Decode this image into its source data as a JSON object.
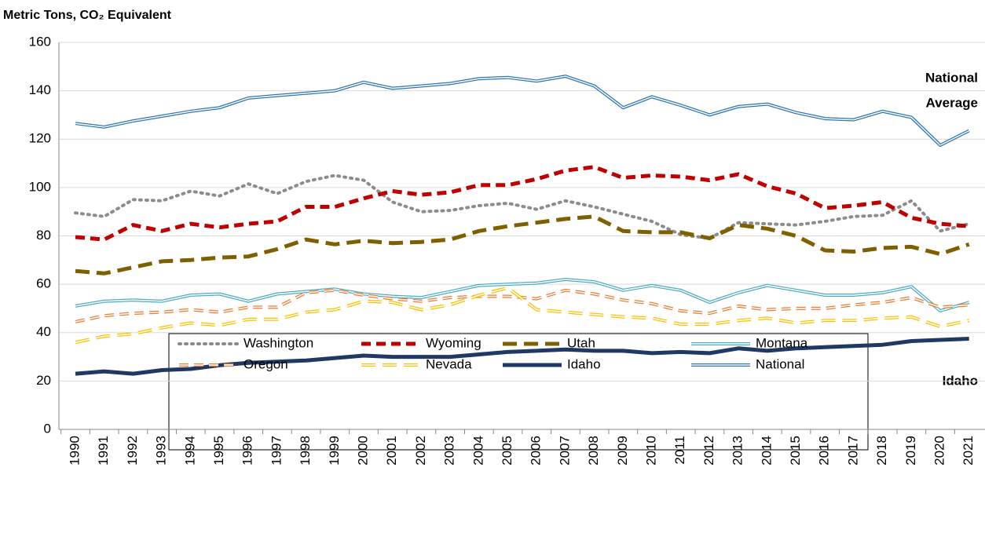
{
  "chart_data": {
    "type": "line",
    "y_axis_title": "Metric Tons, CO₂ Equivalent",
    "annotations": [
      "National",
      "Average",
      "Idaho"
    ],
    "categories": [
      "1990",
      "1991",
      "1992",
      "1993",
      "1994",
      "1995",
      "1996",
      "1997",
      "1998",
      "1999",
      "2000",
      "2001",
      "2002",
      "2003",
      "2004",
      "2005",
      "2006",
      "2007",
      "2008",
      "2009",
      "2010",
      "2011",
      "2012",
      "2013",
      "2014",
      "2015",
      "2016",
      "2017",
      "2018",
      "2019",
      "2020",
      "2021"
    ],
    "ylim": [
      0,
      160
    ],
    "yticks": [
      0,
      20,
      40,
      60,
      80,
      100,
      120,
      140,
      160
    ],
    "grid": true,
    "series": [
      {
        "name": "Washington",
        "color": "#8c8c8c",
        "style": "dotted",
        "double": false,
        "values": [
          89.5,
          88,
          95,
          94.5,
          98.5,
          96.5,
          101.5,
          97.5,
          102.5,
          105,
          103,
          94,
          90,
          90.5,
          92.5,
          93.5,
          91,
          94.5,
          92,
          89,
          86,
          80.5,
          79,
          85.5,
          85,
          84.5,
          86,
          88,
          88.5,
          94.5,
          82,
          85
        ]
      },
      {
        "name": "Wyoming",
        "color": "#c00000",
        "style": "dashed",
        "double": false,
        "values": [
          79.5,
          78.5,
          84.5,
          82,
          85,
          83.5,
          85,
          86,
          92,
          92,
          95.5,
          98.5,
          97,
          98,
          101,
          101,
          103.5,
          107,
          108.5,
          104,
          105,
          104.5,
          103,
          105.5,
          100.5,
          97.5,
          91.5,
          92.5,
          94,
          87.5,
          85,
          84
        ]
      },
      {
        "name": "Utah",
        "color": "#7f6000",
        "style": "longdash",
        "double": false,
        "values": [
          65.5,
          64.5,
          67,
          69.5,
          70,
          71,
          71.5,
          74.5,
          78.5,
          76.5,
          78,
          77,
          77.5,
          78.5,
          82,
          84,
          85.5,
          87,
          88,
          82,
          81.5,
          81.5,
          79,
          84.5,
          83,
          80,
          74,
          73.5,
          75,
          75.5,
          72.5,
          76.5
        ]
      },
      {
        "name": "Montana",
        "color": "#4bacc6",
        "style": "solid",
        "double": true,
        "values": [
          51,
          53,
          53.5,
          53,
          55.5,
          56,
          53,
          56,
          57,
          58,
          56,
          55,
          54.5,
          57,
          59.5,
          60,
          60.5,
          62,
          61,
          57.5,
          59.5,
          57.5,
          52.5,
          56.5,
          59.5,
          57.5,
          55.5,
          55.5,
          56.5,
          59,
          49,
          52.5
        ]
      },
      {
        "name": "Oregon",
        "color": "#ed7d31",
        "style": "dashed",
        "double": true,
        "values": [
          44.5,
          47,
          48,
          48.5,
          49.5,
          48.5,
          50.5,
          50.5,
          56.5,
          57.5,
          55.5,
          54,
          53,
          54.5,
          55,
          55,
          54,
          57.5,
          56,
          53.5,
          52,
          49,
          48,
          51,
          49.5,
          50,
          50,
          51.5,
          52.5,
          54.5,
          50.5,
          51.5
        ]
      },
      {
        "name": "Nevada",
        "color": "#ffc000",
        "style": "longdash",
        "double": true,
        "values": [
          36,
          38.5,
          39.5,
          42,
          44,
          43,
          45.5,
          45.5,
          48.5,
          49.5,
          53,
          52.5,
          49.5,
          51.5,
          55.5,
          58.5,
          49.5,
          48.5,
          47.5,
          46.5,
          46,
          43.5,
          43.5,
          45,
          46,
          44,
          45,
          45,
          46,
          46.5,
          42.5,
          45
        ]
      },
      {
        "name": "Idaho",
        "color": "#1f3864",
        "style": "solid",
        "double": false,
        "values": [
          23,
          24,
          23,
          24.5,
          25,
          26.5,
          27.5,
          28,
          28.5,
          29.5,
          30.5,
          30,
          30,
          30,
          31,
          32,
          32.5,
          33,
          32.5,
          32.5,
          31.5,
          32,
          31.5,
          33.5,
          32.5,
          33.5,
          34,
          34.5,
          35,
          36.5,
          37,
          37.5
        ]
      },
      {
        "name": "National",
        "color": "#2e75b6",
        "style": "solid",
        "double": true,
        "values": [
          126.5,
          125,
          127.5,
          129.5,
          131.5,
          133,
          137,
          138,
          139,
          140,
          143.5,
          141,
          142,
          143,
          145,
          145.5,
          144,
          146,
          142,
          133,
          137.5,
          134,
          130,
          133.5,
          134.5,
          131,
          128.5,
          128,
          131.5,
          129,
          117.5,
          123.5
        ]
      }
    ]
  }
}
